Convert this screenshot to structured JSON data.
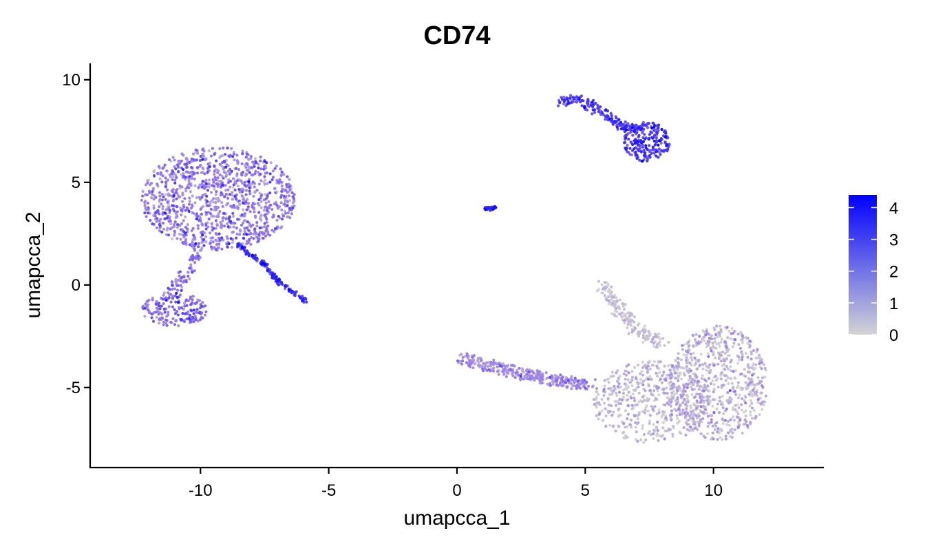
{
  "chart_data": {
    "type": "scatter",
    "title": "CD74",
    "xlabel": "umapcca_1",
    "ylabel": "umapcca_2",
    "xlim": [
      -14.3,
      14.3
    ],
    "ylim": [
      -8.9,
      10.8
    ],
    "x_ticks": [
      -10,
      -5,
      0,
      5,
      10
    ],
    "y_ticks": [
      10,
      5,
      0,
      -5
    ],
    "x_tick_labels": [
      "-10",
      "-5",
      "0",
      "5",
      "10"
    ],
    "y_tick_labels": [
      "10",
      "5",
      "0",
      "-5"
    ],
    "grid": false,
    "legend": {
      "placement": "right",
      "type": "colorbar",
      "range": [
        0,
        4.4
      ],
      "ticks": [
        0,
        1,
        2,
        3,
        4
      ],
      "tick_labels": [
        "0",
        "1",
        "2",
        "3",
        "4"
      ],
      "low_color": "#d3d3d3",
      "high_color": "#0000ff"
    },
    "clusters": [
      {
        "shape": "ellipse",
        "cx": -9.3,
        "cy": 4.2,
        "rx": 3.0,
        "ry": 2.5,
        "n": 1100,
        "expr_mean": 1.9,
        "expr_sd": 0.7
      },
      {
        "shape": "ellipse",
        "cx": -11.0,
        "cy": -1.2,
        "rx": 1.3,
        "ry": 0.8,
        "n": 180,
        "expr_mean": 2.3,
        "expr_sd": 0.6
      },
      {
        "shape": "band",
        "x": [
          -10.0,
          -10.6,
          -11.2
        ],
        "y": [
          2.0,
          0.5,
          -0.4
        ],
        "width": 0.45,
        "n": 80,
        "expr_mean": 2.0,
        "expr_sd": 0.6
      },
      {
        "shape": "band",
        "x": [
          -8.6,
          -7.5,
          -7.0,
          -5.9
        ],
        "y": [
          2.0,
          1.0,
          0.2,
          -0.8
        ],
        "width": 0.18,
        "n": 150,
        "expr_mean": 3.3,
        "expr_sd": 0.5
      },
      {
        "shape": "ellipse",
        "cx": 1.35,
        "cy": 3.72,
        "rx": 0.28,
        "ry": 0.12,
        "n": 25,
        "expr_mean": 3.6,
        "expr_sd": 0.3
      },
      {
        "shape": "band",
        "x": [
          4.0,
          4.8,
          5.6,
          6.3,
          7.0
        ],
        "y": [
          8.9,
          9.1,
          8.4,
          7.8,
          7.5
        ],
        "width": 0.42,
        "n": 180,
        "expr_mean": 3.1,
        "expr_sd": 0.5
      },
      {
        "shape": "ellipse",
        "cx": 7.4,
        "cy": 7.0,
        "rx": 0.9,
        "ry": 1.0,
        "n": 220,
        "expr_mean": 3.2,
        "expr_sd": 0.5
      },
      {
        "shape": "ellipse",
        "cx": 10.2,
        "cy": -4.8,
        "rx": 1.9,
        "ry": 2.8,
        "n": 650,
        "expr_mean": 0.6,
        "expr_sd": 0.7
      },
      {
        "shape": "ellipse",
        "cx": 7.6,
        "cy": -5.7,
        "rx": 2.3,
        "ry": 2.0,
        "n": 520,
        "expr_mean": 0.5,
        "expr_sd": 0.6
      },
      {
        "shape": "band",
        "x": [
          0.2,
          1.8,
          3.5,
          5.2
        ],
        "y": [
          -3.6,
          -4.1,
          -4.6,
          -4.9
        ],
        "width": 0.55,
        "n": 330,
        "expr_mean": 1.5,
        "expr_sd": 0.6
      },
      {
        "shape": "band",
        "x": [
          5.7,
          6.3,
          7.1,
          8.0
        ],
        "y": [
          -0.1,
          -1.2,
          -2.3,
          -2.9
        ],
        "width": 0.55,
        "n": 170,
        "expr_mean": 0.3,
        "expr_sd": 0.4
      }
    ]
  }
}
